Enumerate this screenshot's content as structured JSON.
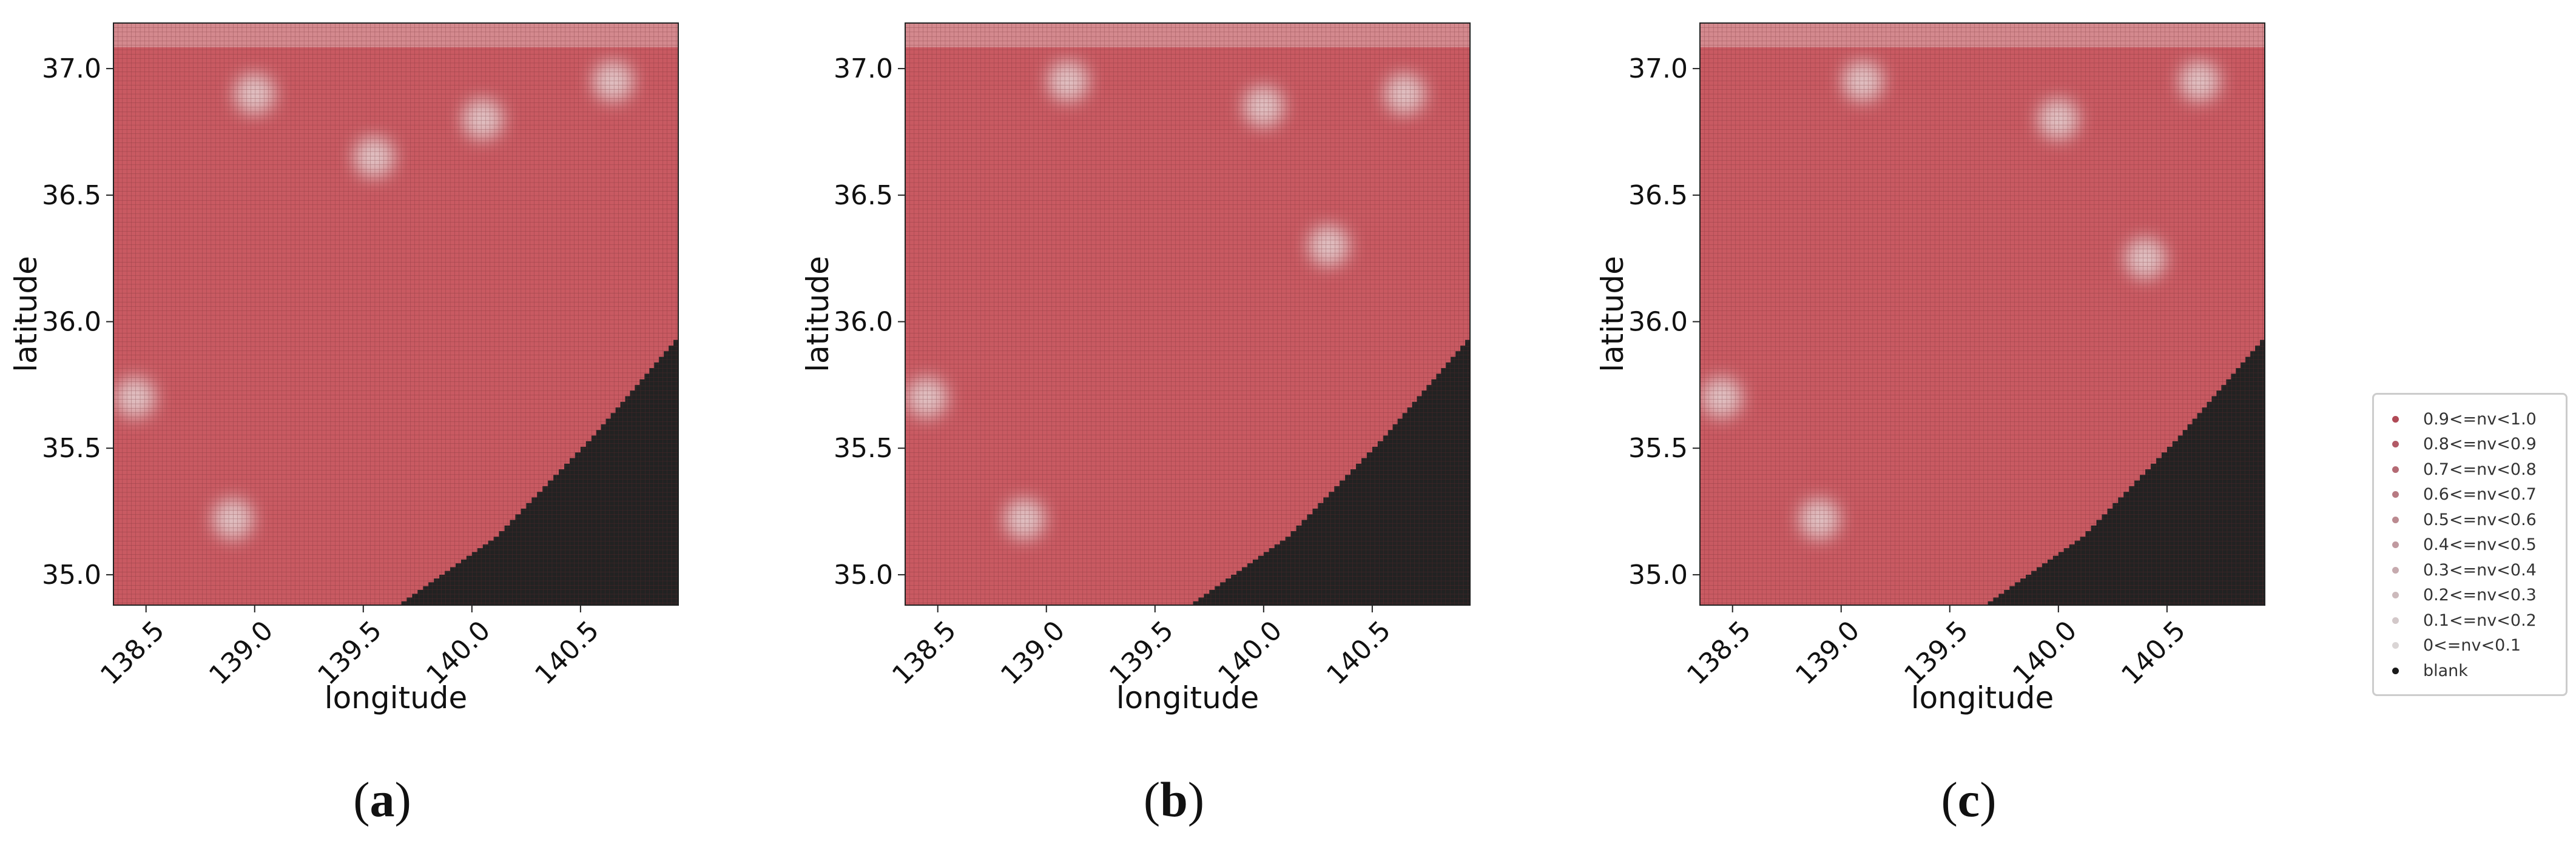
{
  "chart_data": [
    {
      "type": "heatmap",
      "panel_label": "a",
      "xlabel": "longitude",
      "ylabel": "latitude",
      "xlim": [
        138.35,
        140.95
      ],
      "ylim": [
        34.88,
        37.18
      ],
      "x_ticks": [
        "138.5",
        "139.0",
        "139.5",
        "140.0",
        "140.5"
      ],
      "y_ticks": [
        "35.0",
        "35.5",
        "36.0",
        "36.5",
        "37.0"
      ],
      "blank_region_boundary": [
        [
          139.65,
          34.88
        ],
        [
          140.1,
          35.15
        ],
        [
          140.55,
          35.55
        ],
        [
          140.95,
          35.95
        ]
      ],
      "light_spots": [
        [
          138.9,
          35.22
        ],
        [
          139.55,
          36.65
        ],
        [
          140.05,
          36.8
        ],
        [
          140.65,
          36.95
        ],
        [
          139.0,
          36.9
        ],
        [
          138.45,
          35.7
        ]
      ]
    },
    {
      "type": "heatmap",
      "panel_label": "b",
      "xlabel": "longitude",
      "ylabel": "latitude",
      "xlim": [
        138.35,
        140.95
      ],
      "ylim": [
        34.88,
        37.18
      ],
      "x_ticks": [
        "138.5",
        "139.0",
        "139.5",
        "140.0",
        "140.5"
      ],
      "y_ticks": [
        "35.0",
        "35.5",
        "36.0",
        "36.5",
        "37.0"
      ],
      "blank_region_boundary": [
        [
          139.65,
          34.88
        ],
        [
          140.1,
          35.15
        ],
        [
          140.55,
          35.55
        ],
        [
          140.95,
          35.95
        ]
      ],
      "light_spots": [
        [
          138.9,
          35.22
        ],
        [
          140.0,
          36.85
        ],
        [
          140.65,
          36.9
        ],
        [
          139.1,
          36.95
        ],
        [
          140.3,
          36.3
        ],
        [
          138.45,
          35.7
        ]
      ]
    },
    {
      "type": "heatmap",
      "panel_label": "c",
      "xlabel": "longitude",
      "ylabel": "latitude",
      "xlim": [
        138.35,
        140.95
      ],
      "ylim": [
        34.88,
        37.18
      ],
      "x_ticks": [
        "138.5",
        "139.0",
        "139.5",
        "140.0",
        "140.5"
      ],
      "y_ticks": [
        "35.0",
        "35.5",
        "36.0",
        "36.5",
        "37.0"
      ],
      "blank_region_boundary": [
        [
          139.65,
          34.88
        ],
        [
          140.1,
          35.15
        ],
        [
          140.55,
          35.55
        ],
        [
          140.95,
          35.95
        ]
      ],
      "light_spots": [
        [
          138.9,
          35.22
        ],
        [
          140.0,
          36.8
        ],
        [
          140.65,
          36.95
        ],
        [
          139.1,
          36.95
        ],
        [
          140.4,
          36.25
        ],
        [
          138.45,
          35.7
        ]
      ]
    }
  ],
  "legend": {
    "items": [
      {
        "label": "0.9<=nv<1.0",
        "color": "#b04a56"
      },
      {
        "label": "0.8<=nv<0.9",
        "color": "#b25a66"
      },
      {
        "label": "0.7<=nv<0.8",
        "color": "#b46a74"
      },
      {
        "label": "0.6<=nv<0.7",
        "color": "#b77a82"
      },
      {
        "label": "0.5<=nv<0.6",
        "color": "#bb8a90"
      },
      {
        "label": "0.4<=nv<0.5",
        "color": "#c09aa0"
      },
      {
        "label": "0.3<=nv<0.4",
        "color": "#c6aaae"
      },
      {
        "label": "0.2<=nv<0.3",
        "color": "#ccbabc"
      },
      {
        "label": "0.1<=nv<0.2",
        "color": "#d3c8c9"
      },
      {
        "label": "0<=nv<0.1",
        "color": "#dad5d5"
      },
      {
        "label": "blank",
        "color": "#1a1a1a"
      }
    ]
  },
  "captions": [
    "(a)",
    "(b)",
    "(c)"
  ],
  "colors": {
    "fill": "#c95a62",
    "grid": "#6b2a30",
    "blank": "#222222",
    "light": "#e8e2e2"
  }
}
